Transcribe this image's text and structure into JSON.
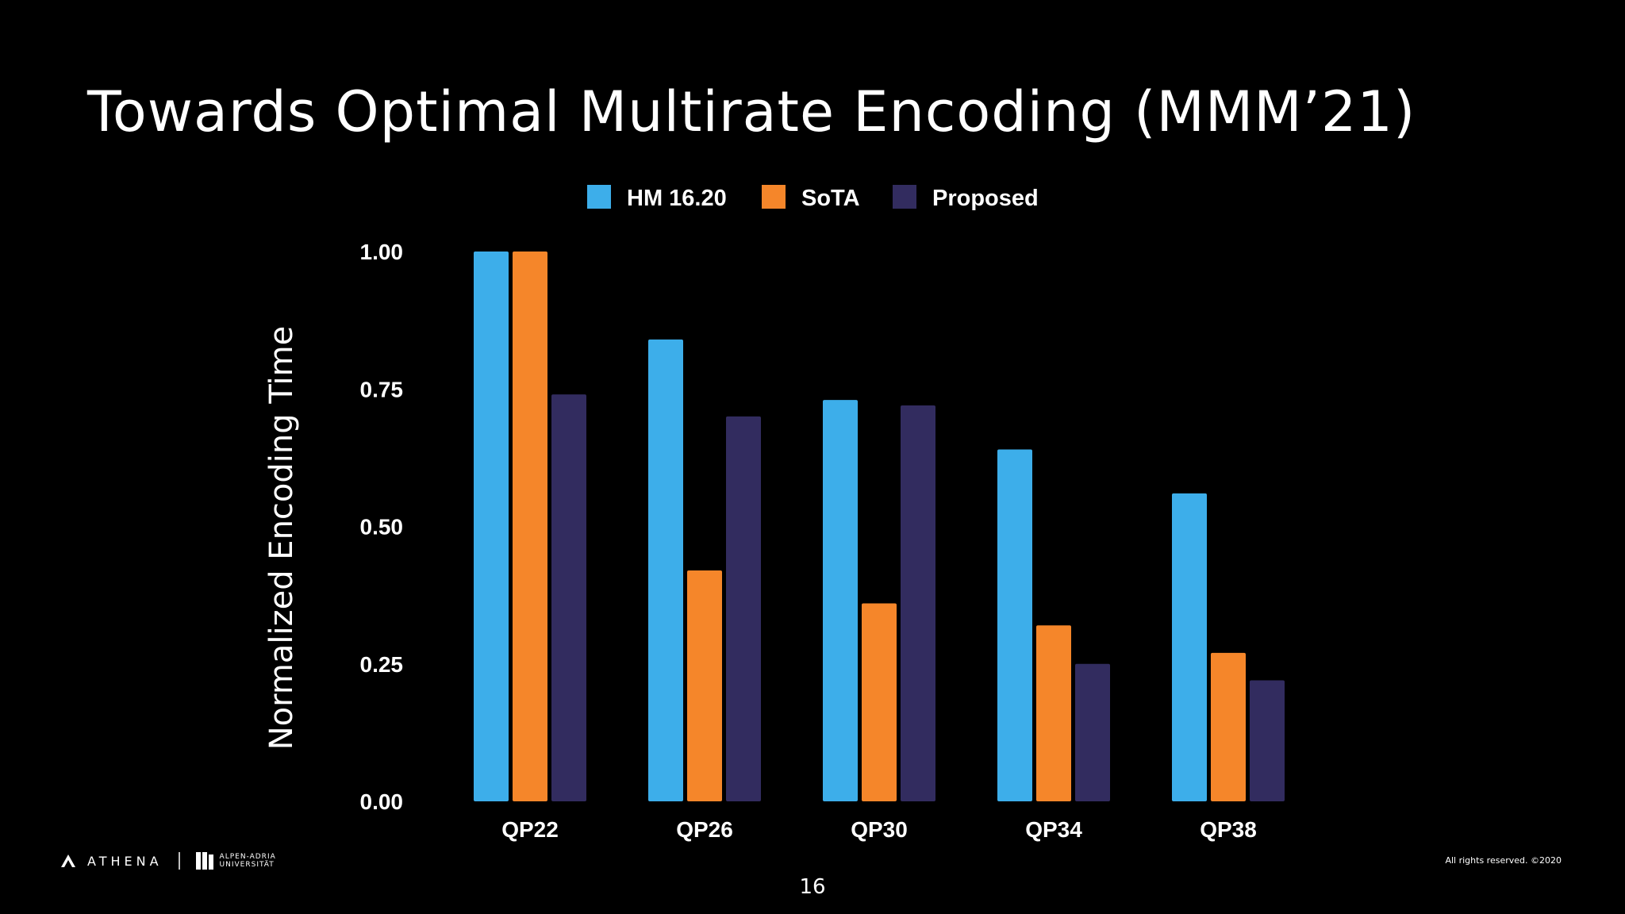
{
  "slide": {
    "title": "Towards Optimal Multirate Encoding (MMM’21)",
    "page_number": "16",
    "copyright": "All rights reserved.  ©2020"
  },
  "footer": {
    "logo_athena_text": "ATHENA",
    "logo_university_text_line1": "ALPEN-ADRIA",
    "logo_university_text_line2": "UNIVERSITÄT"
  },
  "chart_data": {
    "type": "bar",
    "title": "",
    "xlabel": "",
    "ylabel": "Normalized Encoding Time",
    "categories": [
      "QP22",
      "QP26",
      "QP30",
      "QP34",
      "QP38"
    ],
    "series": [
      {
        "name": "HM 16.20",
        "color": "#3daeea",
        "values": [
          1.0,
          0.84,
          0.73,
          0.64,
          0.56
        ]
      },
      {
        "name": "SoTA",
        "color": "#f5862a",
        "values": [
          1.0,
          0.42,
          0.36,
          0.32,
          0.27
        ]
      },
      {
        "name": "Proposed",
        "color": "#322c5f",
        "values": [
          0.74,
          0.7,
          0.72,
          0.25,
          0.22
        ]
      }
    ],
    "y_ticks": [
      "0.00",
      "0.25",
      "0.50",
      "0.75",
      "1.00"
    ],
    "ylim": [
      0,
      1.0
    ],
    "grid": false,
    "legend_position": "top-center"
  }
}
